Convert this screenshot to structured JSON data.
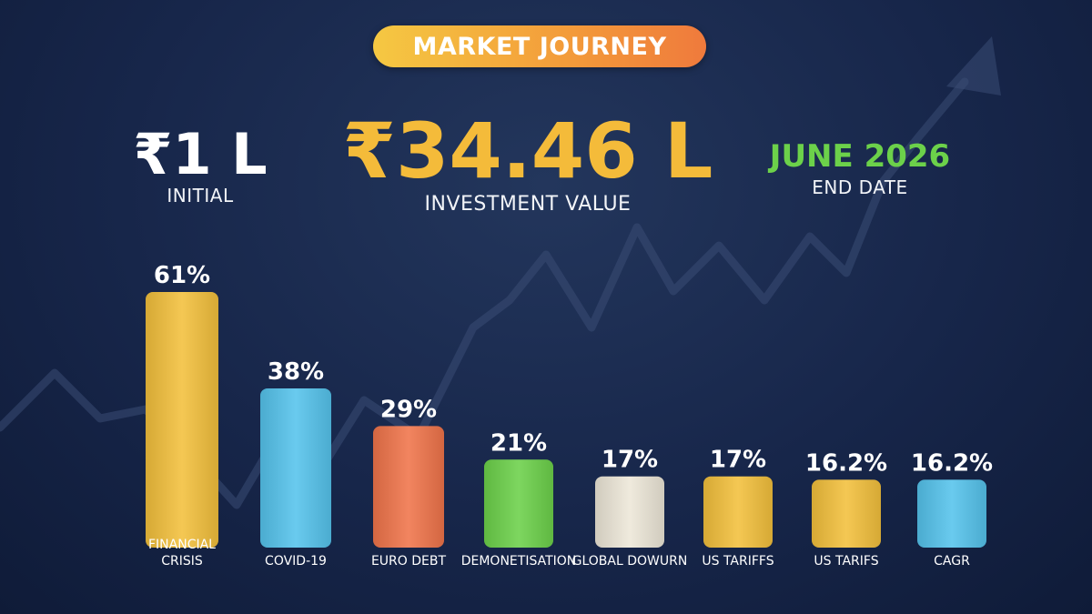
{
  "header": {
    "title": "MARKET JOURNEY"
  },
  "stats": {
    "initial": {
      "value": "₹1 L",
      "label": "INITIAL"
    },
    "investment_value": {
      "value": "₹34.46 L",
      "label": "INVESTMENT VALUE"
    },
    "end_date": {
      "value": "JUNE 2026",
      "label": "END DATE"
    }
  },
  "colors": {
    "gold": "#f3c03c",
    "blue": "#55c3ec",
    "orange": "#f0744a",
    "green": "#6cd14a",
    "cream": "#ede7d8",
    "value_text": "#f4bb3a",
    "date_text": "#6cd14a",
    "background": "#17264a"
  },
  "chart_data": {
    "type": "bar",
    "categories": [
      "FINANCIAL CRISIS",
      "COVID-19",
      "EURO DEBT",
      "DEMONETISATION",
      "GLOBAL DOWURN",
      "US TARIFFS",
      "US TARIFS",
      "CAGR"
    ],
    "values": [
      61,
      38,
      29,
      21,
      17,
      17,
      16.2,
      16.2
    ],
    "value_labels": [
      "61%",
      "38%",
      "29%",
      "21%",
      "17%",
      "17%",
      "16.2%",
      "16.2%"
    ],
    "bar_colors": [
      "#f3c03c",
      "#55c3ec",
      "#f0744a",
      "#6cd14a",
      "#ede7d8",
      "#f3c03c",
      "#f3c03c",
      "#55c3ec"
    ],
    "title": "",
    "xlabel": "",
    "ylabel": "",
    "grid": false
  }
}
